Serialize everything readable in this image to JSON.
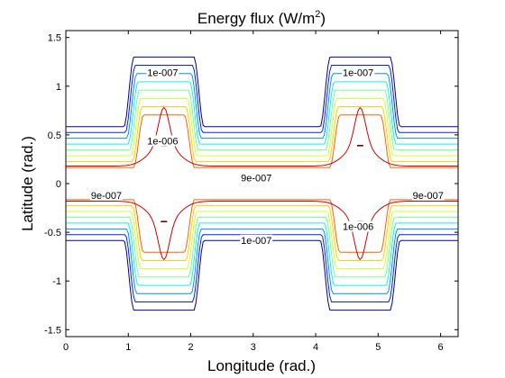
{
  "chart_data": {
    "type": "contour",
    "title": "Energy flux (W/m",
    "title_superscript": "2",
    "title_suffix": ")",
    "xlabel": "Longitude (rad.)",
    "ylabel": "Latitude (rad.)",
    "xlim": [
      0,
      6.28
    ],
    "ylim": [
      -1.571,
      1.571
    ],
    "x_ticks": [
      0,
      1,
      2,
      3,
      4,
      5,
      6
    ],
    "x_tick_labels": [
      "0",
      "1",
      "2",
      "3",
      "4",
      "5",
      "6"
    ],
    "y_ticks": [
      1.5,
      1,
      0.5,
      0,
      -0.5,
      -1,
      -1.5
    ],
    "y_tick_labels": [
      "1.5",
      "1",
      "0.5",
      "0",
      "-0.5",
      "-1",
      "-1.5"
    ],
    "grid": false,
    "contour_levels": [
      {
        "level": 1e-07,
        "color": "#00008f"
      },
      {
        "level": 2e-07,
        "color": "#0020ff"
      },
      {
        "level": 3e-07,
        "color": "#0090ff"
      },
      {
        "level": 4e-07,
        "color": "#10f0f0"
      },
      {
        "level": 5e-07,
        "color": "#70ff90"
      },
      {
        "level": 6e-07,
        "color": "#d0ff30"
      },
      {
        "level": 7e-07,
        "color": "#ffd000"
      },
      {
        "level": 8e-07,
        "color": "#ff6000"
      },
      {
        "level": 9e-07,
        "color": "#d00000"
      },
      {
        "level": 1e-06,
        "color": "#800000"
      }
    ],
    "contour_labels": [
      {
        "text": "1e-007",
        "x": 1.55,
        "y": 1.14
      },
      {
        "text": "1e-007",
        "x": 4.68,
        "y": 1.14
      },
      {
        "text": "1e-006",
        "x": 1.55,
        "y": 0.44
      },
      {
        "text": "9e-007",
        "x": 3.05,
        "y": 0.06
      },
      {
        "text": "9e-007",
        "x": 0.65,
        "y": -0.12
      },
      {
        "text": "9e-007",
        "x": 5.8,
        "y": -0.12
      },
      {
        "text": "1e-006",
        "x": 4.68,
        "y": -0.44
      },
      {
        "text": "1e-007",
        "x": 3.05,
        "y": -0.58
      }
    ]
  }
}
